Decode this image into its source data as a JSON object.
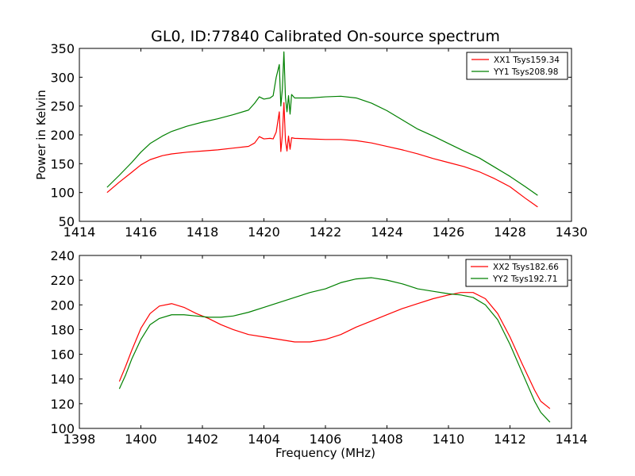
{
  "figure": {
    "title": "GL0, ID:77840 Calibrated On-source spectrum"
  },
  "chart_data": [
    {
      "type": "line",
      "title": "GL0, ID:77840 Calibrated On-source spectrum",
      "xlabel": "",
      "ylabel": "Power in Kelvin",
      "xlim": [
        1414,
        1430
      ],
      "ylim": [
        50,
        350
      ],
      "xticks": [
        "1414",
        "1416",
        "1418",
        "1420",
        "1422",
        "1424",
        "1426",
        "1428",
        "1430"
      ],
      "yticks": [
        "50",
        "100",
        "150",
        "200",
        "250",
        "300",
        "350"
      ],
      "grid": false,
      "legend_position": "top-right",
      "series": [
        {
          "name": "XX1 Tsys159.34",
          "color": "#ff0000",
          "x": [
            1414.9,
            1415.3,
            1415.7,
            1416.0,
            1416.3,
            1416.7,
            1417.0,
            1417.5,
            1418.0,
            1418.5,
            1419.0,
            1419.5,
            1419.7,
            1419.85,
            1420.0,
            1420.2,
            1420.3,
            1420.4,
            1420.5,
            1420.55,
            1420.6,
            1420.65,
            1420.7,
            1420.75,
            1420.8,
            1420.85,
            1420.9,
            1421.0,
            1421.5,
            1422.0,
            1422.5,
            1423.0,
            1423.5,
            1424.0,
            1424.5,
            1425.0,
            1425.5,
            1426.0,
            1426.5,
            1427.0,
            1427.5,
            1428.0,
            1428.5,
            1428.9
          ],
          "values": [
            100,
            118,
            135,
            148,
            157,
            164,
            167,
            170,
            172,
            174,
            177,
            180,
            186,
            197,
            193,
            194,
            193,
            205,
            240,
            171,
            200,
            256,
            190,
            172,
            198,
            175,
            195,
            194,
            193,
            192,
            192,
            190,
            186,
            180,
            174,
            167,
            159,
            152,
            145,
            136,
            124,
            110,
            90,
            75
          ]
        },
        {
          "name": "YY1 Tsys208.98",
          "color": "#008000",
          "x": [
            1414.9,
            1415.3,
            1415.7,
            1416.0,
            1416.3,
            1416.7,
            1417.0,
            1417.5,
            1418.0,
            1418.5,
            1419.0,
            1419.5,
            1419.7,
            1419.85,
            1420.0,
            1420.2,
            1420.3,
            1420.4,
            1420.5,
            1420.55,
            1420.6,
            1420.65,
            1420.7,
            1420.75,
            1420.8,
            1420.85,
            1420.9,
            1421.0,
            1421.5,
            1422.0,
            1422.5,
            1423.0,
            1423.5,
            1424.0,
            1424.5,
            1425.0,
            1425.5,
            1426.0,
            1426.5,
            1427.0,
            1427.5,
            1428.0,
            1428.5,
            1428.9
          ],
          "values": [
            109,
            130,
            152,
            170,
            185,
            198,
            206,
            215,
            222,
            228,
            235,
            243,
            255,
            266,
            262,
            264,
            268,
            300,
            322,
            250,
            280,
            344,
            265,
            240,
            268,
            236,
            270,
            264,
            264,
            266,
            267,
            264,
            255,
            242,
            226,
            210,
            198,
            185,
            172,
            160,
            144,
            128,
            110,
            95
          ]
        }
      ]
    },
    {
      "type": "line",
      "title": "",
      "xlabel": "Frequency (MHz)",
      "ylabel": "",
      "xlim": [
        1398,
        1414
      ],
      "ylim": [
        100,
        240
      ],
      "xticks": [
        "1398",
        "1400",
        "1402",
        "1404",
        "1406",
        "1408",
        "1410",
        "1412",
        "1414"
      ],
      "yticks": [
        "100",
        "120",
        "140",
        "160",
        "180",
        "200",
        "220",
        "240"
      ],
      "grid": false,
      "legend_position": "top-right",
      "series": [
        {
          "name": "XX2 Tsys182.66",
          "color": "#ff0000",
          "x": [
            1399.3,
            1399.5,
            1399.7,
            1400.0,
            1400.3,
            1400.6,
            1401.0,
            1401.4,
            1401.8,
            1402.2,
            1402.6,
            1403.0,
            1403.5,
            1404.0,
            1404.5,
            1405.0,
            1405.5,
            1406.0,
            1406.5,
            1407.0,
            1407.5,
            1408.0,
            1408.5,
            1409.0,
            1409.5,
            1410.0,
            1410.4,
            1410.8,
            1411.2,
            1411.6,
            1412.0,
            1412.4,
            1412.8,
            1413.0,
            1413.3
          ],
          "values": [
            138,
            150,
            163,
            181,
            193,
            199,
            201,
            198,
            193,
            189,
            184,
            180,
            176,
            174,
            172,
            170,
            170,
            172,
            176,
            182,
            187,
            192,
            197,
            201,
            205,
            208,
            210,
            210,
            205,
            193,
            174,
            152,
            131,
            122,
            116
          ]
        },
        {
          "name": "YY2 Tsys192.71",
          "color": "#008000",
          "x": [
            1399.3,
            1399.5,
            1399.7,
            1400.0,
            1400.3,
            1400.6,
            1401.0,
            1401.4,
            1401.8,
            1402.2,
            1402.6,
            1403.0,
            1403.5,
            1404.0,
            1404.5,
            1405.0,
            1405.5,
            1406.0,
            1406.5,
            1407.0,
            1407.5,
            1408.0,
            1408.5,
            1409.0,
            1409.5,
            1410.0,
            1410.4,
            1410.8,
            1411.2,
            1411.6,
            1412.0,
            1412.4,
            1412.8,
            1413.0,
            1413.3
          ],
          "values": [
            132,
            143,
            156,
            172,
            184,
            189,
            192,
            192,
            191,
            190,
            190,
            191,
            194,
            198,
            202,
            206,
            210,
            213,
            218,
            221,
            222,
            220,
            217,
            213,
            211,
            209,
            208,
            206,
            200,
            188,
            168,
            145,
            122,
            113,
            105
          ]
        }
      ]
    }
  ]
}
